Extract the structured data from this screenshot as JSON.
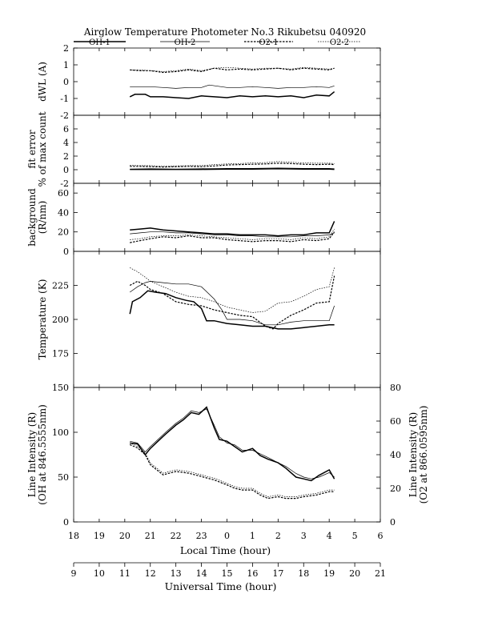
{
  "title": "Airglow Temperature Photometer No.3   Rikubetsu   040920",
  "legend": [
    {
      "label": "OH-1",
      "style": "solid-thick"
    },
    {
      "label": "OH-2",
      "style": "solid-thin"
    },
    {
      "label": "O2-1",
      "style": "dashed-thick"
    },
    {
      "label": "O2-2",
      "style": "dotted-thin"
    }
  ],
  "x_axis": {
    "local_label": "Local Time (hour)",
    "local_ticks": [
      "18",
      "19",
      "20",
      "21",
      "22",
      "23",
      "0",
      "1",
      "2",
      "3",
      "4",
      "5",
      "6"
    ],
    "ut_label": "Universal Time (hour)",
    "ut_ticks": [
      "9",
      "10",
      "11",
      "12",
      "13",
      "14",
      "15",
      "16",
      "17",
      "18",
      "19",
      "20",
      "21"
    ],
    "range_ut": [
      9,
      21
    ]
  },
  "chart_data": [
    {
      "type": "line",
      "ylabel": "dWL (A)",
      "ylim": [
        -2,
        2
      ],
      "yticks": [
        -2,
        -1,
        0,
        1,
        2
      ],
      "x_units": "UT hour",
      "series": [
        {
          "name": "OH-1",
          "x": [
            11.2,
            11.4,
            11.8,
            12.0,
            12.5,
            13.0,
            13.5,
            14.0,
            14.5,
            15.0,
            15.5,
            16.0,
            16.5,
            17.0,
            17.5,
            18.0,
            18.5,
            19.0,
            19.2
          ],
          "values": [
            -0.9,
            -0.75,
            -0.75,
            -0.9,
            -0.9,
            -0.95,
            -1.0,
            -0.85,
            -0.9,
            -0.95,
            -0.85,
            -0.9,
            -0.85,
            -0.9,
            -0.85,
            -0.95,
            -0.8,
            -0.85,
            -0.6
          ]
        },
        {
          "name": "OH-2",
          "x": [
            11.2,
            12.0,
            12.5,
            13.0,
            13.5,
            14.0,
            14.3,
            15.0,
            15.5,
            16.0,
            16.5,
            17.0,
            17.5,
            18.0,
            18.5,
            19.0,
            19.2
          ],
          "values": [
            -0.3,
            -0.3,
            -0.35,
            -0.4,
            -0.35,
            -0.35,
            -0.2,
            -0.35,
            -0.35,
            -0.3,
            -0.35,
            -0.4,
            -0.35,
            -0.35,
            -0.3,
            -0.35,
            -0.25
          ]
        },
        {
          "name": "O2-1",
          "x": [
            11.2,
            11.6,
            12.0,
            12.5,
            13.0,
            13.5,
            14.0,
            14.5,
            15.0,
            15.5,
            16.0,
            16.5,
            17.0,
            17.5,
            18.0,
            18.5,
            19.0,
            19.2
          ],
          "values": [
            0.7,
            0.65,
            0.65,
            0.55,
            0.6,
            0.7,
            0.6,
            0.8,
            0.7,
            0.75,
            0.7,
            0.75,
            0.8,
            0.7,
            0.8,
            0.75,
            0.7,
            0.8
          ]
        },
        {
          "name": "O2-2",
          "x": [
            11.2,
            11.6,
            12.0,
            12.5,
            13.0,
            13.5,
            14.0,
            14.5,
            15.0,
            15.5,
            16.0,
            16.5,
            17.0,
            17.5,
            18.0,
            18.5,
            19.0,
            19.2
          ],
          "values": [
            0.7,
            0.7,
            0.65,
            0.6,
            0.65,
            0.75,
            0.65,
            0.8,
            0.85,
            0.8,
            0.75,
            0.8,
            0.8,
            0.75,
            0.85,
            0.8,
            0.75,
            0.8
          ]
        }
      ]
    },
    {
      "type": "line",
      "ylabel": "fit error\n% of max count",
      "ylim": [
        -2,
        8
      ],
      "yticks": [
        -2,
        0,
        2,
        4,
        6
      ],
      "x_units": "UT hour",
      "series": [
        {
          "name": "OH-1",
          "x": [
            11.2,
            12.0,
            13.0,
            14.0,
            15.0,
            16.0,
            17.0,
            18.0,
            19.0,
            19.2
          ],
          "values": [
            0.05,
            0.05,
            0.05,
            0.05,
            0.1,
            0.1,
            0.15,
            0.1,
            0.1,
            0.05
          ]
        },
        {
          "name": "OH-2",
          "x": [
            11.2,
            12.0,
            13.0,
            14.0,
            15.0,
            16.0,
            17.0,
            18.0,
            19.0,
            19.2
          ],
          "values": [
            0.1,
            0.15,
            0.1,
            0.15,
            0.2,
            0.2,
            0.25,
            0.2,
            0.2,
            0.15
          ]
        },
        {
          "name": "O2-1",
          "x": [
            11.2,
            11.6,
            12.0,
            12.5,
            13.0,
            13.5,
            14.0,
            14.5,
            15.0,
            15.5,
            16.0,
            16.5,
            17.0,
            17.5,
            18.0,
            18.5,
            19.0,
            19.2
          ],
          "values": [
            0.5,
            0.5,
            0.45,
            0.4,
            0.45,
            0.5,
            0.45,
            0.55,
            0.7,
            0.75,
            0.8,
            0.85,
            0.95,
            0.9,
            0.8,
            0.75,
            0.8,
            0.75
          ]
        },
        {
          "name": "O2-2",
          "x": [
            11.2,
            11.6,
            12.0,
            12.5,
            13.0,
            13.5,
            14.0,
            14.5,
            15.0,
            15.5,
            16.0,
            16.5,
            17.0,
            17.5,
            18.0,
            18.5,
            19.0,
            19.2
          ],
          "values": [
            0.65,
            0.6,
            0.6,
            0.5,
            0.55,
            0.6,
            0.6,
            0.75,
            0.85,
            0.9,
            1.0,
            1.05,
            1.2,
            1.1,
            1.0,
            0.95,
            0.95,
            0.9
          ]
        }
      ]
    },
    {
      "type": "line",
      "ylabel": "background\n(R/nm)",
      "ylim": [
        0,
        70
      ],
      "yticks": [
        0,
        20,
        40,
        60
      ],
      "x_units": "UT hour",
      "series": [
        {
          "name": "OH-1",
          "x": [
            11.2,
            11.6,
            12.0,
            12.5,
            13.0,
            13.5,
            14.0,
            14.5,
            15.0,
            15.5,
            16.0,
            16.5,
            17.0,
            17.5,
            18.0,
            18.5,
            19.0,
            19.2
          ],
          "values": [
            22,
            23,
            24,
            22,
            21,
            20,
            19,
            18,
            18,
            17,
            17,
            17,
            16,
            17,
            17,
            19,
            19,
            31
          ]
        },
        {
          "name": "OH-2",
          "x": [
            11.2,
            11.6,
            12.0,
            12.5,
            13.0,
            13.5,
            14.0,
            14.5,
            15.0,
            15.5,
            16.0,
            16.5,
            17.0,
            17.5,
            18.0,
            18.5,
            19.0,
            19.2
          ],
          "values": [
            18,
            19,
            20,
            20,
            19,
            19,
            18,
            17,
            17,
            16,
            16,
            15,
            15,
            15,
            16,
            16,
            17,
            19
          ]
        },
        {
          "name": "O2-1",
          "x": [
            11.2,
            11.6,
            12.0,
            12.5,
            13.0,
            13.5,
            14.0,
            14.5,
            15.0,
            15.5,
            16.0,
            16.5,
            17.0,
            17.5,
            18.0,
            18.5,
            19.0,
            19.2
          ],
          "values": [
            9,
            11,
            13,
            15,
            14,
            16,
            14,
            14,
            12,
            11,
            10,
            11,
            11,
            10,
            12,
            11,
            13,
            20
          ]
        },
        {
          "name": "O2-2",
          "x": [
            11.2,
            11.6,
            12.0,
            12.5,
            13.0,
            13.5,
            14.0,
            14.5,
            15.0,
            15.5,
            16.0,
            16.5,
            17.0,
            17.5,
            18.0,
            18.5,
            19.0,
            19.2
          ],
          "values": [
            12,
            13,
            15,
            16,
            16,
            17,
            16,
            15,
            14,
            13,
            12,
            13,
            13,
            12,
            14,
            13,
            15,
            23
          ]
        }
      ]
    },
    {
      "type": "line",
      "ylabel": "Temperature (K)",
      "ylim": [
        150,
        250
      ],
      "yticks": [
        175,
        200,
        225
      ],
      "x_units": "UT hour",
      "series": [
        {
          "name": "OH-1",
          "x": [
            11.2,
            11.3,
            11.6,
            11.9,
            12.2,
            12.6,
            13.0,
            13.4,
            13.7,
            14.0,
            14.2,
            14.5,
            15.0,
            15.5,
            16.0,
            16.5,
            17.0,
            17.5,
            18.0,
            18.5,
            19.0,
            19.2
          ],
          "values": [
            204,
            213,
            216,
            221,
            220,
            219,
            216,
            214,
            213,
            208,
            199,
            199,
            197,
            196,
            195,
            195,
            193,
            193,
            194,
            195,
            196,
            196
          ]
        },
        {
          "name": "OH-2",
          "x": [
            11.2,
            11.5,
            11.8,
            12.0,
            12.5,
            13.0,
            13.5,
            14.0,
            14.5,
            14.8,
            15.0,
            15.5,
            16.0,
            16.5,
            17.0,
            17.5,
            18.0,
            18.5,
            19.0,
            19.2
          ],
          "values": [
            220,
            224,
            227,
            228,
            227,
            226,
            226,
            224,
            215,
            207,
            200,
            200,
            199,
            196,
            196,
            198,
            199,
            199,
            199,
            210
          ]
        },
        {
          "name": "O2-1",
          "x": [
            11.2,
            11.5,
            11.8,
            12.0,
            12.5,
            13.0,
            13.5,
            14.0,
            14.5,
            15.0,
            15.5,
            16.0,
            16.5,
            16.8,
            17.0,
            17.5,
            18.0,
            18.5,
            19.0,
            19.2
          ],
          "values": [
            225,
            228,
            225,
            222,
            219,
            213,
            211,
            210,
            207,
            205,
            203,
            202,
            195,
            193,
            197,
            203,
            207,
            212,
            213,
            232
          ]
        },
        {
          "name": "O2-2",
          "x": [
            11.2,
            11.5,
            11.8,
            12.0,
            12.5,
            13.0,
            13.5,
            14.0,
            14.5,
            15.0,
            15.5,
            16.0,
            16.5,
            17.0,
            17.5,
            18.0,
            18.5,
            19.0,
            19.2
          ],
          "values": [
            238,
            235,
            231,
            228,
            224,
            220,
            217,
            216,
            213,
            209,
            207,
            205,
            206,
            212,
            213,
            217,
            222,
            224,
            238
          ]
        }
      ]
    },
    {
      "type": "line",
      "ylabel": "Line Intensity (R)\n(OH at 846.5555nm)",
      "ylabel_right": "Line Intensity (R)\n(O2 at 866.0595nm)",
      "ylim": [
        0,
        150
      ],
      "yticks": [
        0,
        50,
        100,
        150
      ],
      "ylim_right": [
        0,
        80
      ],
      "yticks_right": [
        0,
        20,
        40,
        60,
        80
      ],
      "x_units": "UT hour",
      "series": [
        {
          "name": "OH-1",
          "axis": "left",
          "x": [
            11.2,
            11.5,
            11.8,
            12.0,
            12.3,
            12.6,
            13.0,
            13.3,
            13.6,
            13.9,
            14.2,
            14.5,
            14.7,
            15.0,
            15.3,
            15.6,
            16.0,
            16.3,
            16.6,
            17.0,
            17.3,
            17.7,
            18.0,
            18.3,
            18.6,
            19.0,
            19.2
          ],
          "values": [
            88,
            87,
            75,
            82,
            90,
            98,
            108,
            114,
            122,
            120,
            128,
            105,
            92,
            90,
            84,
            78,
            82,
            74,
            70,
            66,
            60,
            50,
            48,
            46,
            52,
            58,
            48
          ]
        },
        {
          "name": "OH-2",
          "axis": "left",
          "x": [
            11.2,
            11.5,
            11.8,
            12.0,
            12.3,
            12.6,
            13.0,
            13.3,
            13.6,
            13.9,
            14.2,
            14.5,
            14.7,
            15.0,
            15.3,
            15.6,
            16.0,
            16.3,
            16.6,
            17.0,
            17.3,
            17.7,
            18.0,
            18.3,
            18.6,
            19.0,
            19.2
          ],
          "values": [
            90,
            88,
            78,
            84,
            92,
            100,
            110,
            116,
            124,
            122,
            126,
            108,
            95,
            88,
            86,
            80,
            80,
            76,
            72,
            66,
            62,
            54,
            50,
            48,
            50,
            55,
            50
          ]
        },
        {
          "name": "O2-1",
          "axis": "right",
          "x": [
            11.2,
            11.5,
            11.8,
            12.0,
            12.5,
            13.0,
            13.5,
            14.0,
            14.5,
            15.0,
            15.3,
            15.6,
            16.0,
            16.3,
            16.6,
            17.0,
            17.3,
            17.7,
            18.0,
            18.5,
            19.0,
            19.2
          ],
          "values": [
            46,
            44,
            40,
            34,
            28,
            30,
            29,
            27,
            25,
            22,
            20,
            19,
            19,
            16,
            14,
            15,
            14,
            14,
            15,
            16,
            18,
            18
          ]
        },
        {
          "name": "O2-2",
          "axis": "right",
          "x": [
            11.2,
            11.5,
            11.8,
            12.0,
            12.5,
            13.0,
            13.5,
            14.0,
            14.5,
            15.0,
            15.3,
            15.6,
            16.0,
            16.3,
            16.6,
            17.0,
            17.3,
            17.7,
            18.0,
            18.5,
            19.0,
            19.2
          ],
          "values": [
            47,
            45,
            41,
            35,
            29,
            31,
            30,
            28,
            26,
            23,
            21,
            20,
            20,
            17,
            15,
            16,
            15,
            15,
            16,
            17,
            19,
            19
          ]
        }
      ]
    }
  ]
}
